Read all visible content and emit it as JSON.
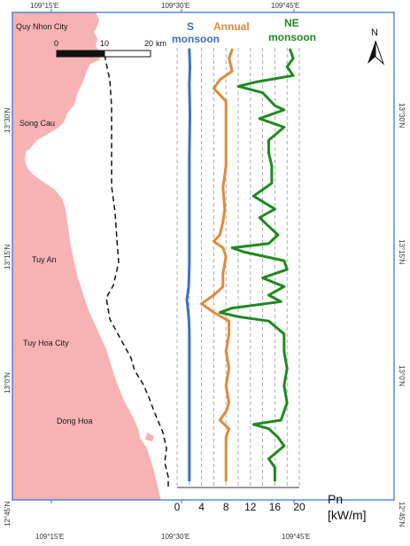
{
  "map": {
    "top_longitudes": [
      "109°15'E",
      "109°30'E",
      "109°45'E"
    ],
    "bottom_longitudes": [
      "109°15'E",
      "109°30'E",
      "109°45'E"
    ],
    "left_latitudes": [
      "13°30'N",
      "13°15'N",
      "13°0'N",
      "12°45'N"
    ],
    "right_latitudes": [
      "13°30'N",
      "13°15'N",
      "13°0'N",
      "12°45'N"
    ],
    "places": [
      "Quy Nhon City",
      "Song Cau",
      "Tuy An",
      "Tuy Hoa City",
      "Dong Hoa"
    ],
    "scale_bar": {
      "labels": [
        "0",
        "10",
        "20"
      ],
      "unit": "km"
    },
    "north_label": "N",
    "colors": {
      "land": "#f7b3b3",
      "sea": "#ffffff",
      "coastline_border": "#2f6fd6",
      "grid": "#9a9a9a"
    }
  },
  "chart_data": {
    "type": "line",
    "x_axis": {
      "label": "Pn",
      "unit": "[kW/m]",
      "ticks": [
        0,
        4,
        8,
        12,
        16,
        20
      ],
      "range": [
        0,
        20
      ],
      "grid": "dashed vertical"
    },
    "y_axis": {
      "meaning": "position along coast (top = north)",
      "range": [
        0,
        1
      ]
    },
    "legend_placement": "top, above each series",
    "series": [
      {
        "label_lines": [
          "S",
          "monsoon"
        ],
        "color": "#3a6fc4",
        "y": [
          0.0,
          0.04,
          0.08,
          0.15,
          0.25,
          0.35,
          0.42,
          0.46,
          0.5,
          0.55,
          0.58,
          0.62,
          0.65,
          0.75,
          0.85,
          0.95,
          1.0
        ],
        "x": [
          2.0,
          2.1,
          2.0,
          2.1,
          2.0,
          2.0,
          2.0,
          2.0,
          2.0,
          1.9,
          1.6,
          1.9,
          2.0,
          2.0,
          2.0,
          2.0,
          2.0
        ]
      },
      {
        "label_lines": [
          "Annual"
        ],
        "color": "#e08a3c",
        "y": [
          0.0,
          0.02,
          0.05,
          0.07,
          0.09,
          0.12,
          0.16,
          0.21,
          0.27,
          0.32,
          0.37,
          0.4,
          0.43,
          0.445,
          0.46,
          0.48,
          0.52,
          0.55,
          0.57,
          0.59,
          0.61,
          0.63,
          0.66,
          0.7,
          0.74,
          0.78,
          0.82,
          0.84,
          0.86,
          0.88,
          0.9,
          0.93,
          0.96,
          1.0
        ],
        "x": [
          9.0,
          8.5,
          9.0,
          7.0,
          6.0,
          8.0,
          8.0,
          8.0,
          8.0,
          7.5,
          7.8,
          7.5,
          7.0,
          6.0,
          7.5,
          8.0,
          7.5,
          7.5,
          6.0,
          4.0,
          6.0,
          8.5,
          8.5,
          8.0,
          8.5,
          8.0,
          8.5,
          8.0,
          7.0,
          8.5,
          8.0,
          8.0,
          8.0,
          8.0
        ]
      },
      {
        "label_lines": [
          "NE",
          "monsoon"
        ],
        "color": "#1f8a1f",
        "y": [
          0.0,
          0.02,
          0.04,
          0.06,
          0.075,
          0.085,
          0.1,
          0.13,
          0.14,
          0.16,
          0.18,
          0.21,
          0.24,
          0.27,
          0.31,
          0.34,
          0.37,
          0.39,
          0.41,
          0.43,
          0.45,
          0.46,
          0.47,
          0.49,
          0.51,
          0.53,
          0.55,
          0.57,
          0.585,
          0.6,
          0.61,
          0.62,
          0.63,
          0.66,
          0.7,
          0.74,
          0.78,
          0.82,
          0.86,
          0.87,
          0.88,
          0.9,
          0.92,
          0.95,
          0.97,
          1.0
        ],
        "x": [
          18.5,
          19.0,
          18.0,
          19.0,
          13.0,
          10.0,
          14.0,
          16.0,
          17.5,
          13.5,
          17.5,
          15.0,
          15.0,
          15.5,
          15.5,
          12.5,
          16.0,
          13.5,
          15.0,
          16.5,
          15.0,
          9.0,
          11.0,
          17.5,
          18.0,
          14.0,
          17.5,
          15.0,
          17.0,
          9.0,
          7.0,
          10.0,
          15.0,
          17.5,
          17.5,
          18.0,
          17.5,
          18.0,
          17.0,
          12.5,
          15.0,
          16.5,
          17.5,
          15.0,
          16.0,
          16.0
        ]
      }
    ]
  }
}
